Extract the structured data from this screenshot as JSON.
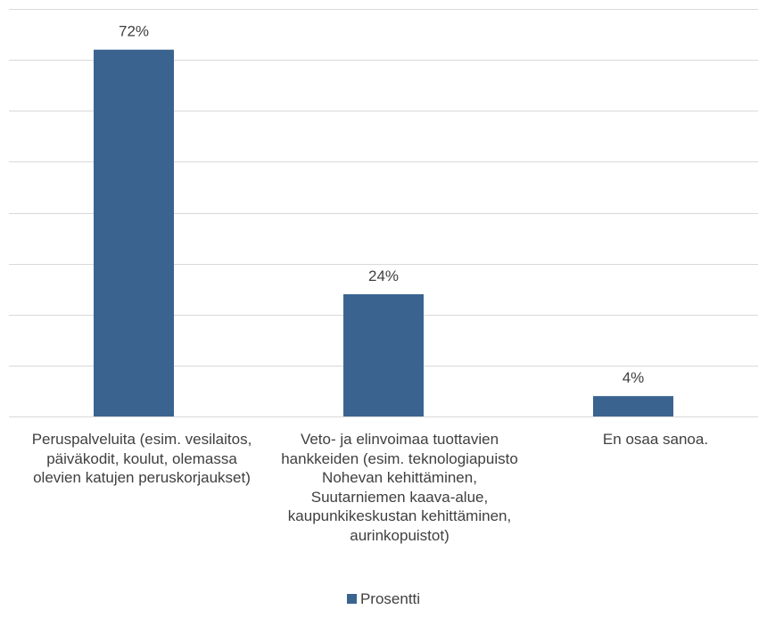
{
  "chart_data": {
    "type": "bar",
    "categories": [
      "Peruspalveluita (esim. vesilaitos, päiväkodit, koulut, olemassa olevien katujen peruskorjaukset)",
      "Veto- ja elinvoimaa tuottavien hankkeiden (esim. teknologiapuisto Nohevan kehittäminen, Suutarniemen kaava-alue, kaupunkikeskustan kehittäminen, aurinkopuistot)",
      "En osaa sanoa."
    ],
    "series": [
      {
        "name": "Prosentti",
        "values": [
          72,
          24,
          4
        ],
        "labels": [
          "72%",
          "24%",
          "4%"
        ]
      }
    ],
    "ylim": [
      0,
      80
    ],
    "grid": true,
    "y_tick_labels_shown": false,
    "legend_position": "bottom",
    "bar_color": "#3A648F",
    "grid_color": "#D9D9D9"
  }
}
